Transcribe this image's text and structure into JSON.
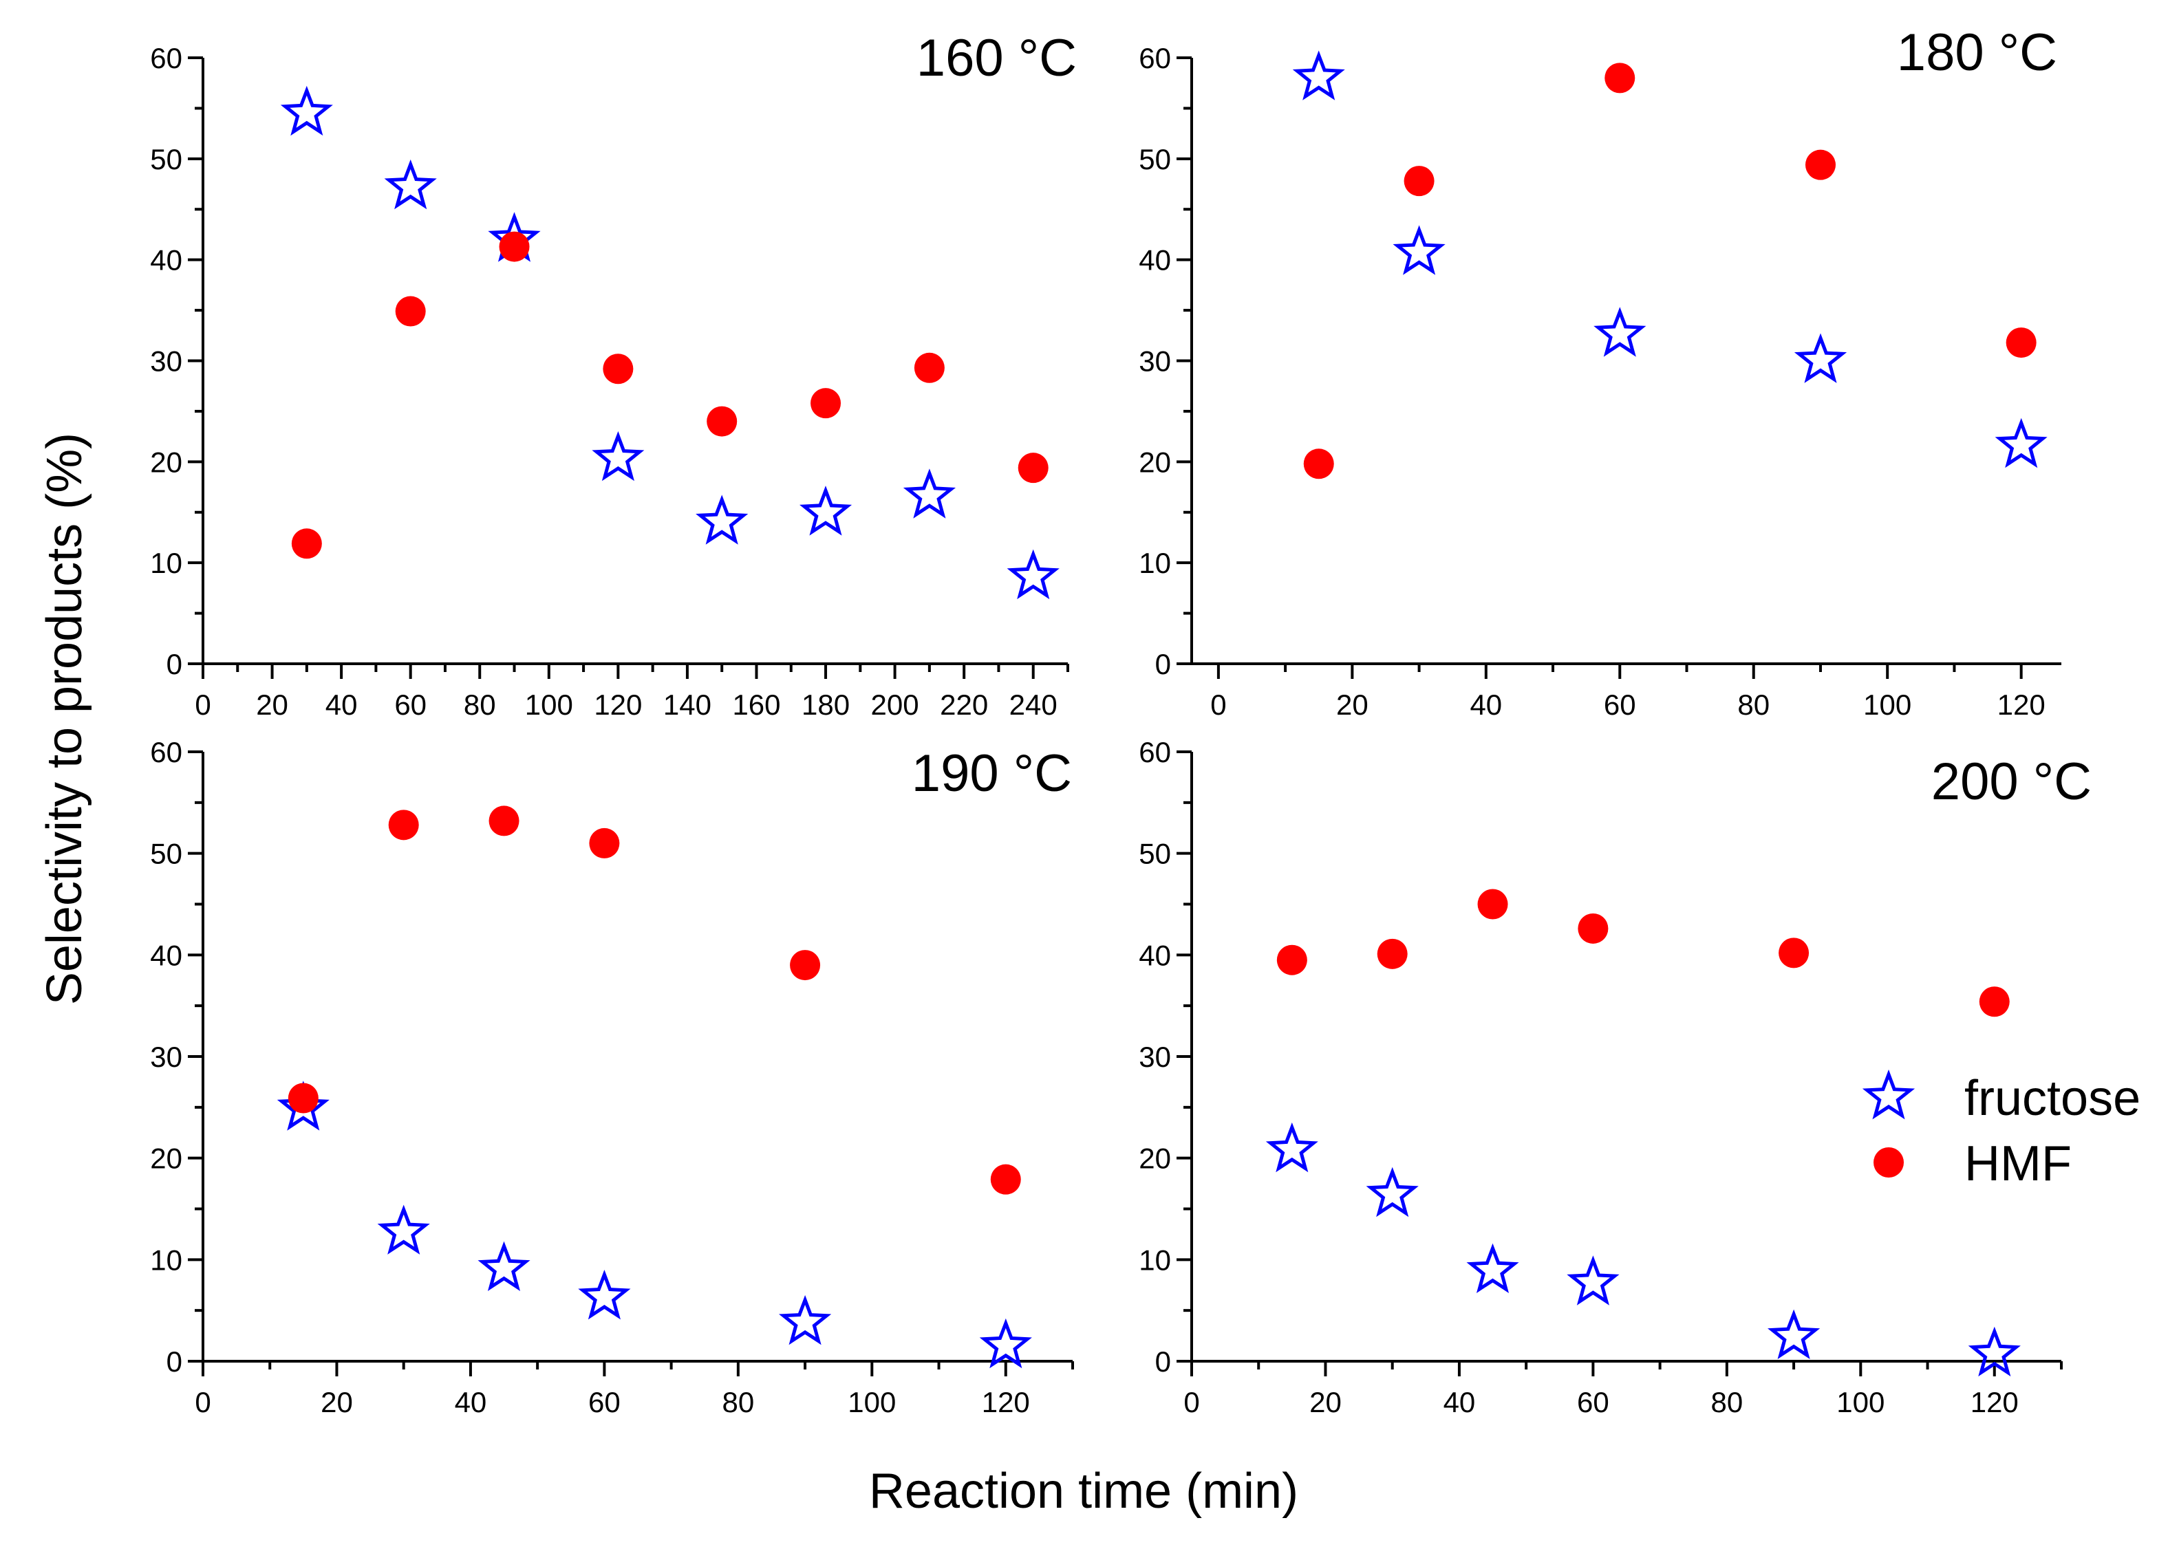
{
  "figure": {
    "xlabel": "Reaction time (min)",
    "ylabel": "Selectivity to products (%)"
  },
  "legend": {
    "entries": [
      {
        "label": "fructose",
        "marker": "open-star",
        "color": "#0000ff"
      },
      {
        "label": "HMF",
        "marker": "filled-circle",
        "color": "#ff0000"
      }
    ]
  },
  "chart_data": [
    {
      "type": "scatter",
      "title": "160 °C",
      "xlim": [
        0,
        250
      ],
      "ylim": [
        0,
        60
      ],
      "xticks": [
        0,
        20,
        40,
        60,
        80,
        100,
        120,
        140,
        160,
        180,
        200,
        220,
        240
      ],
      "yticks": [
        0,
        10,
        20,
        30,
        40,
        50,
        60
      ],
      "series": [
        {
          "name": "fructose",
          "color": "#0000ff",
          "marker": "open-star",
          "x": [
            30,
            60,
            90,
            120,
            150,
            180,
            210,
            240
          ],
          "y": [
            54.5,
            47.2,
            42.0,
            20.3,
            14.0,
            14.9,
            16.6,
            8.6
          ]
        },
        {
          "name": "HMF",
          "color": "#ff0000",
          "marker": "filled-circle",
          "x": [
            30,
            60,
            90,
            120,
            150,
            180,
            210,
            240
          ],
          "y": [
            11.9,
            34.9,
            41.3,
            29.2,
            24.0,
            25.8,
            29.3,
            19.4
          ]
        }
      ]
    },
    {
      "type": "scatter",
      "title": "180 °C",
      "xlim": [
        -4,
        126
      ],
      "ylim": [
        0,
        60
      ],
      "xticks": [
        0,
        20,
        40,
        60,
        80,
        100,
        120
      ],
      "yticks": [
        0,
        10,
        20,
        30,
        40,
        50,
        60
      ],
      "series": [
        {
          "name": "fructose",
          "color": "#0000ff",
          "marker": "open-star",
          "x": [
            15,
            30,
            60,
            90,
            120
          ],
          "y": [
            58.0,
            40.7,
            32.6,
            30.0,
            21.6
          ]
        },
        {
          "name": "HMF",
          "color": "#ff0000",
          "marker": "filled-circle",
          "x": [
            15,
            30,
            60,
            90,
            120
          ],
          "y": [
            19.8,
            47.8,
            58.0,
            49.4,
            31.8
          ]
        }
      ]
    },
    {
      "type": "scatter",
      "title": "190 °C",
      "xlim": [
        0,
        130
      ],
      "ylim": [
        0,
        60
      ],
      "xticks": [
        0,
        20,
        40,
        60,
        80,
        100,
        120
      ],
      "yticks": [
        0,
        10,
        20,
        30,
        40,
        50,
        60
      ],
      "series": [
        {
          "name": "fructose",
          "color": "#0000ff",
          "marker": "open-star",
          "x": [
            15,
            30,
            45,
            60,
            90,
            120
          ],
          "y": [
            24.9,
            12.7,
            9.1,
            6.3,
            3.8,
            1.5
          ]
        },
        {
          "name": "HMF",
          "color": "#ff0000",
          "marker": "filled-circle",
          "x": [
            15,
            30,
            45,
            60,
            90,
            120
          ],
          "y": [
            25.9,
            52.8,
            53.2,
            51.0,
            39.0,
            17.9
          ]
        }
      ]
    },
    {
      "type": "scatter",
      "title": "200 °C",
      "xlim": [
        0,
        130
      ],
      "ylim": [
        0,
        60
      ],
      "xticks": [
        0,
        20,
        40,
        60,
        80,
        100,
        120
      ],
      "yticks": [
        0,
        10,
        20,
        30,
        40,
        50,
        60
      ],
      "series": [
        {
          "name": "fructose",
          "color": "#0000ff",
          "marker": "open-star",
          "x": [
            15,
            30,
            45,
            60,
            90,
            120
          ],
          "y": [
            20.8,
            16.4,
            8.9,
            7.7,
            2.4,
            0.7
          ]
        },
        {
          "name": "HMF",
          "color": "#ff0000",
          "marker": "filled-circle",
          "x": [
            15,
            30,
            45,
            60,
            90,
            120
          ],
          "y": [
            39.5,
            40.1,
            45.0,
            42.6,
            40.2,
            35.4
          ]
        }
      ]
    }
  ]
}
